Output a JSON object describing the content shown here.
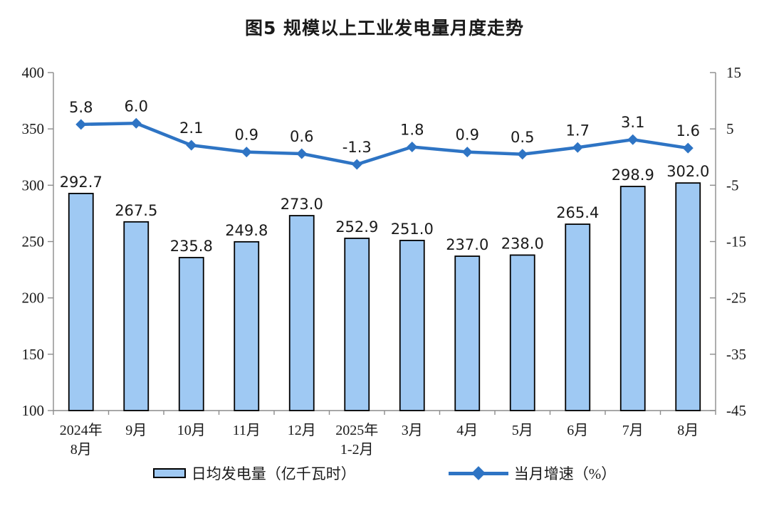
{
  "title": "图5  规模以上工业发电量月度走势",
  "legend": {
    "bar_label": "日均发电量（亿千瓦时）",
    "line_label": "当月增速（%）"
  },
  "colors": {
    "bar_fill": "#9FC9F3",
    "bar_border": "#000000",
    "line": "#2E74C4",
    "axis": "#8C8C8C",
    "text": "#1a1a1a"
  },
  "chart_data": {
    "type": "bar+line",
    "title": "图5  规模以上工业发电量月度走势",
    "categories": [
      [
        "2024年",
        "8月"
      ],
      [
        "9月"
      ],
      [
        "10月"
      ],
      [
        "11月"
      ],
      [
        "12月"
      ],
      [
        "2025年",
        "1-2月"
      ],
      [
        "3月"
      ],
      [
        "4月"
      ],
      [
        "5月"
      ],
      [
        "6月"
      ],
      [
        "7月"
      ],
      [
        "8月"
      ]
    ],
    "series": [
      {
        "name": "日均发电量（亿千瓦时）",
        "type": "bar",
        "axis": "left",
        "values": [
          292.7,
          267.5,
          235.8,
          249.8,
          273.0,
          252.9,
          251.0,
          237.0,
          238.0,
          265.4,
          298.9,
          302.0
        ]
      },
      {
        "name": "当月增速（%）",
        "type": "line",
        "axis": "right",
        "values": [
          5.8,
          6.0,
          2.1,
          0.9,
          0.6,
          -1.3,
          1.8,
          0.9,
          0.5,
          1.7,
          3.1,
          1.6
        ]
      }
    ],
    "left_axis": {
      "min": 100,
      "max": 400,
      "ticks": [
        400,
        350,
        300,
        250,
        200,
        150,
        100
      ]
    },
    "right_axis": {
      "min": -45,
      "max": 15,
      "ticks": [
        15,
        5,
        -5,
        -15,
        -25,
        -35,
        -45
      ]
    },
    "grid": false,
    "legend_position": "bottom",
    "value_label_decimals": 1
  }
}
